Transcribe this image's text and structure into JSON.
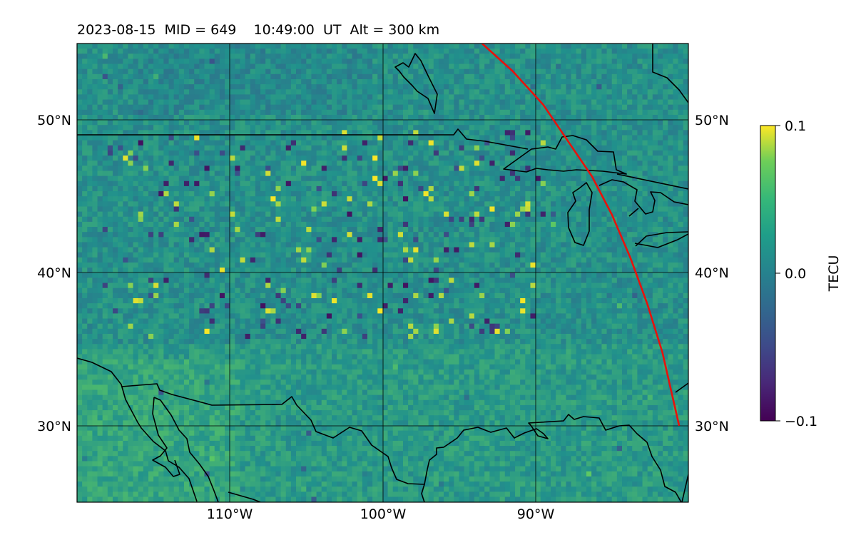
{
  "header": {
    "title": "2023-08-15  MID = 649    10:49:00  UT  Alt = 300 km"
  },
  "map": {
    "projection": "lat-lon",
    "lon_range": [
      -120,
      -80
    ],
    "lat_range": [
      25,
      55
    ],
    "lat_ticks": [
      {
        "value": 30,
        "label": "30°N"
      },
      {
        "value": 40,
        "label": "40°N"
      },
      {
        "value": 50,
        "label": "50°N"
      }
    ],
    "lon_ticks": [
      {
        "value": -110,
        "label": "110°W"
      },
      {
        "value": -100,
        "label": "100°W"
      },
      {
        "value": -90,
        "label": "90°W"
      }
    ],
    "gridlines": true,
    "background_field": "differential TEC, mostly near 0 with scattered negative (purple) and positive (yellow) pixels",
    "coastline_color": "#000000",
    "track_color": "#e8120c",
    "track": [
      {
        "lon": -93.5,
        "lat": 55.0
      },
      {
        "lon": -91.5,
        "lat": 53.2
      },
      {
        "lon": -89.5,
        "lat": 51.0
      },
      {
        "lon": -87.8,
        "lat": 48.5
      },
      {
        "lon": -86.3,
        "lat": 46.3
      },
      {
        "lon": -85.0,
        "lat": 43.8
      },
      {
        "lon": -83.8,
        "lat": 41.0
      },
      {
        "lon": -82.7,
        "lat": 38.0
      },
      {
        "lon": -81.7,
        "lat": 34.8
      },
      {
        "lon": -80.6,
        "lat": 30.0
      }
    ]
  },
  "colorbar": {
    "label": "TECU",
    "colormap": "viridis",
    "vmin": -0.1,
    "vmax": 0.1,
    "ticks": [
      {
        "value": 0.1,
        "label": "0.1"
      },
      {
        "value": 0.0,
        "label": "0.0"
      },
      {
        "value": -0.1,
        "label": "−0.1"
      }
    ]
  }
}
